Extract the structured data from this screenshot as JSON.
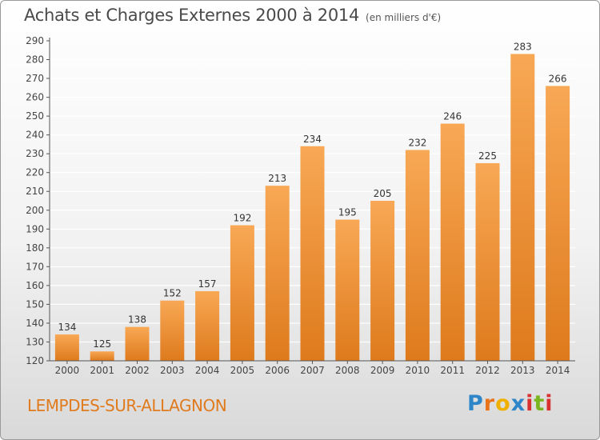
{
  "header": {
    "title": "Achats et Charges Externes 2000 à 2014",
    "subtitle": "(en milliers d'€)"
  },
  "footer": {
    "city": "LEMPDES-SUR-ALLAGNON",
    "logo": {
      "text": "Proxiti",
      "letters": [
        {
          "ch": "P",
          "color": "#2e86c8"
        },
        {
          "ch": "r",
          "color": "#e8731a"
        },
        {
          "ch": "o",
          "color": "#f0b000"
        },
        {
          "ch": "x",
          "color": "#2e86c8"
        },
        {
          "ch": "i",
          "color": "#d93030"
        },
        {
          "ch": "t",
          "color": "#7ab51d"
        },
        {
          "ch": "i",
          "color": "#d93030"
        }
      ]
    }
  },
  "colors": {
    "bar_light": "#f8a855",
    "bar_dark": "#de7a1c",
    "axis": "#555555",
    "grid": "#ffffff",
    "city": "#e07b1e"
  },
  "chart_data": {
    "type": "bar",
    "title": "Achats et Charges Externes 2000 à 2014",
    "subtitle": "(en milliers d'€)",
    "categories": [
      "2000",
      "2001",
      "2002",
      "2003",
      "2004",
      "2005",
      "2006",
      "2007",
      "2008",
      "2009",
      "2010",
      "2011",
      "2012",
      "2013",
      "2014"
    ],
    "values": [
      134,
      125,
      138,
      152,
      157,
      192,
      213,
      234,
      195,
      205,
      232,
      246,
      225,
      283,
      266
    ],
    "ylim": [
      120,
      290
    ],
    "yticks": [
      120,
      130,
      140,
      150,
      160,
      170,
      180,
      190,
      200,
      210,
      220,
      230,
      240,
      250,
      260,
      270,
      280,
      290
    ],
    "grid": true,
    "data_labels": true
  }
}
